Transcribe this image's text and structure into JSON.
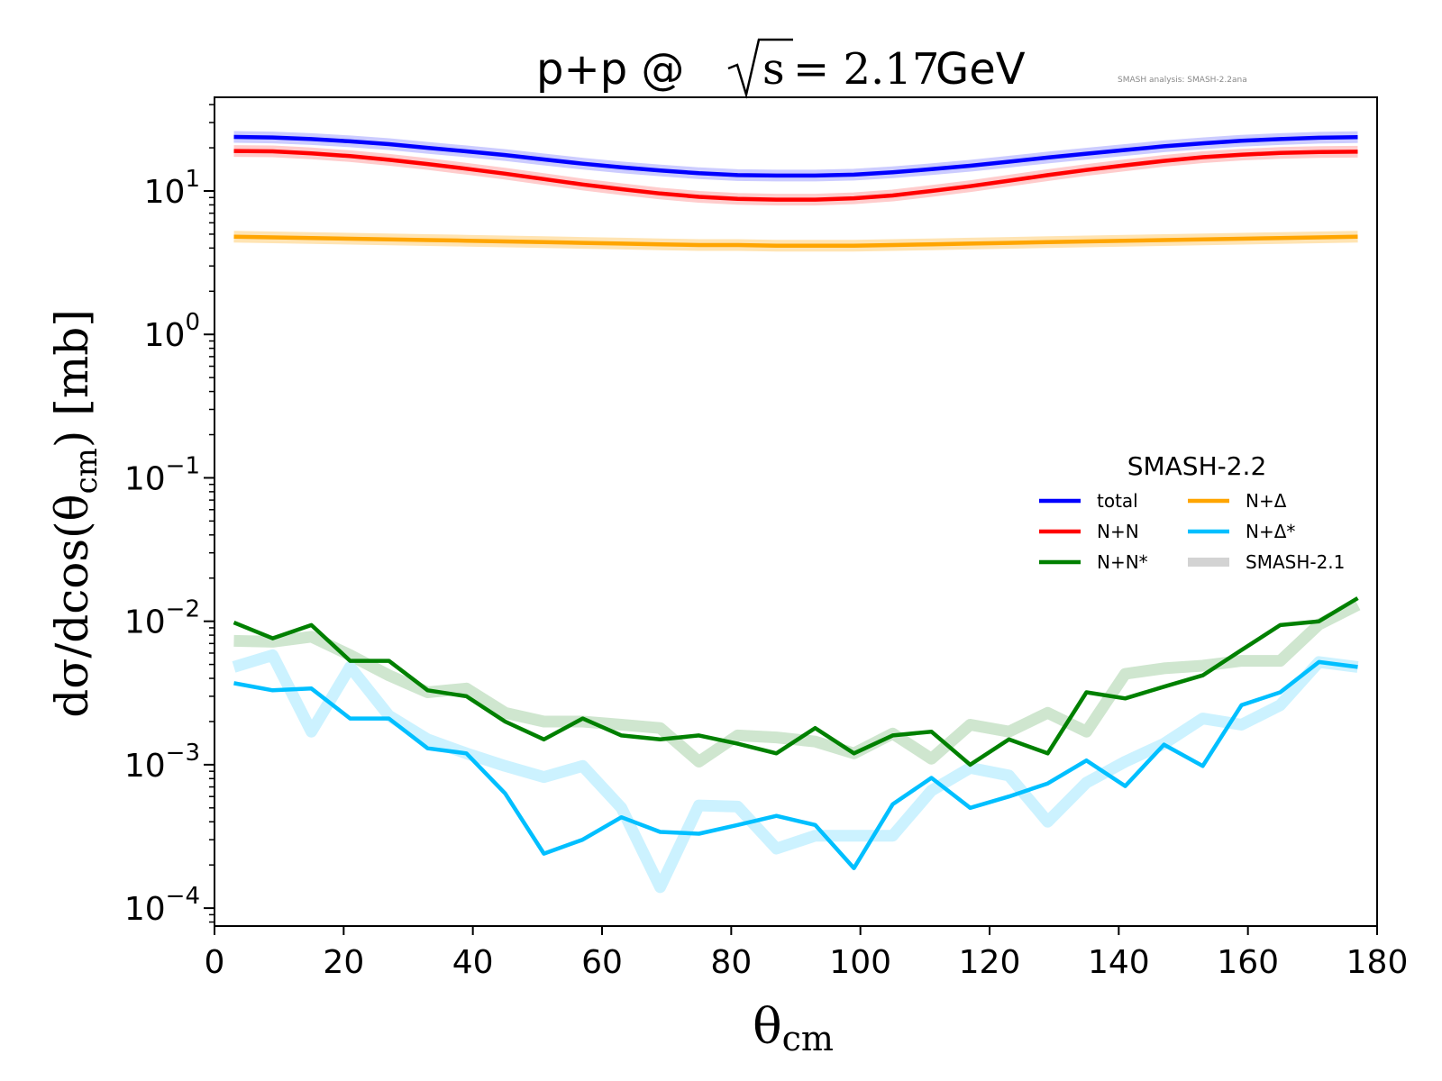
{
  "chart_data": {
    "type": "line",
    "title": {
      "prefix": "p+p @ ",
      "sqrt_arg": "s",
      "equals_value": " = 2.17",
      "suffix": " GeV"
    },
    "annotation": "SMASH analysis: SMASH-2.2ana",
    "xlabel": {
      "base": "θ",
      "sub": "cm"
    },
    "ylabel": {
      "prefix": "dσ/dcos(θ",
      "sub": "cm",
      "suffix": ") [mb]"
    },
    "xlim": [
      0,
      180
    ],
    "ylim": [
      7.5e-05,
      45
    ],
    "yscale": "log",
    "xticks": [
      "0",
      "20",
      "40",
      "60",
      "80",
      "100",
      "120",
      "140",
      "160",
      "180"
    ],
    "yticks": [
      {
        "base": "10",
        "exp": "1"
      },
      {
        "base": "10",
        "exp": "0"
      },
      {
        "base": "10",
        "exp": "−1"
      },
      {
        "base": "10",
        "exp": "−2"
      },
      {
        "base": "10",
        "exp": "−3"
      },
      {
        "base": "10",
        "exp": "−4"
      }
    ],
    "legend": {
      "title": "SMASH-2.2",
      "placement": "center-right",
      "entries": [
        {
          "label": "total",
          "color": "#0000ff"
        },
        {
          "label": "N+Δ",
          "color": "#ffa500"
        },
        {
          "label": "N+N",
          "color": "#ff0000"
        },
        {
          "label": "N+Δ*",
          "color": "#00bfff"
        },
        {
          "label": "N+N*",
          "color": "#008000"
        },
        {
          "label": "SMASH-2.1",
          "color": "#d3d3d3"
        }
      ]
    },
    "x": [
      3,
      9,
      15,
      21,
      27,
      33,
      39,
      45,
      51,
      57,
      63,
      69,
      75,
      81,
      87,
      93,
      99,
      105,
      111,
      117,
      123,
      129,
      135,
      141,
      147,
      153,
      159,
      165,
      171,
      177
    ],
    "series": [
      {
        "name": "total",
        "color": "#0000ff",
        "values": [
          23.8,
          23.6,
          23.0,
          22.2,
          21.2,
          20.0,
          18.9,
          17.8,
          16.6,
          15.5,
          14.6,
          13.9,
          13.3,
          12.9,
          12.8,
          12.8,
          13.0,
          13.5,
          14.2,
          15.0,
          16.0,
          17.1,
          18.2,
          19.3,
          20.5,
          21.5,
          22.4,
          23.0,
          23.5,
          23.7
        ]
      },
      {
        "name": "N+N",
        "color": "#ff0000",
        "values": [
          19.0,
          18.9,
          18.3,
          17.5,
          16.5,
          15.4,
          14.3,
          13.2,
          12.1,
          11.1,
          10.3,
          9.6,
          9.1,
          8.8,
          8.7,
          8.7,
          8.9,
          9.3,
          10.0,
          10.8,
          11.8,
          12.9,
          14.0,
          15.1,
          16.2,
          17.2,
          17.9,
          18.4,
          18.7,
          18.8
        ]
      },
      {
        "name": "N+Δ",
        "color": "#ffa500",
        "values": [
          4.8,
          4.75,
          4.7,
          4.65,
          4.6,
          4.55,
          4.5,
          4.45,
          4.4,
          4.35,
          4.3,
          4.25,
          4.2,
          4.2,
          4.15,
          4.15,
          4.15,
          4.2,
          4.25,
          4.3,
          4.35,
          4.4,
          4.45,
          4.5,
          4.55,
          4.6,
          4.65,
          4.7,
          4.75,
          4.8
        ]
      },
      {
        "name": "N+N*",
        "color": "#008000",
        "values": [
          0.0098,
          0.0076,
          0.0094,
          0.0053,
          0.0053,
          0.0033,
          0.003,
          0.002,
          0.0015,
          0.0021,
          0.0016,
          0.0015,
          0.0016,
          0.0014,
          0.0012,
          0.0018,
          0.0012,
          0.0016,
          0.0017,
          0.001,
          0.0015,
          0.0012,
          0.0032,
          0.0029,
          0.0035,
          0.0042,
          0.0063,
          0.0094,
          0.01,
          0.0145
        ]
      },
      {
        "name": "N+Δ*",
        "color": "#00bfff",
        "values": [
          0.0037,
          0.0033,
          0.0034,
          0.0021,
          0.0021,
          0.0013,
          0.0012,
          0.00063,
          0.00024,
          0.0003,
          0.00043,
          0.00034,
          0.00033,
          0.00038,
          0.00044,
          0.00038,
          0.00019,
          0.00053,
          0.00081,
          0.0005,
          0.0006,
          0.00074,
          0.00107,
          0.00071,
          0.00138,
          0.00098,
          0.0026,
          0.0032,
          0.0052,
          0.0048
        ]
      }
    ],
    "reference_series": {
      "name": "SMASH-2.1",
      "lines": [
        {
          "color": "#ccccff",
          "values": [
            23.8,
            23.6,
            23.0,
            22.2,
            21.2,
            20.0,
            18.9,
            17.8,
            16.6,
            15.5,
            14.6,
            13.9,
            13.3,
            12.9,
            12.8,
            12.8,
            13.0,
            13.5,
            14.2,
            15.0,
            16.0,
            17.1,
            18.2,
            19.3,
            20.5,
            21.5,
            22.4,
            23.0,
            23.5,
            23.7
          ]
        },
        {
          "color": "#ffcccc",
          "values": [
            19.0,
            18.9,
            18.3,
            17.5,
            16.5,
            15.4,
            14.3,
            13.2,
            12.1,
            11.1,
            10.3,
            9.6,
            9.1,
            8.8,
            8.7,
            8.7,
            8.9,
            9.3,
            10.0,
            10.8,
            11.8,
            12.9,
            14.0,
            15.1,
            16.2,
            17.2,
            17.9,
            18.4,
            18.7,
            18.8
          ]
        },
        {
          "color": "#ffe4b3",
          "values": [
            4.8,
            4.75,
            4.7,
            4.65,
            4.6,
            4.55,
            4.5,
            4.45,
            4.4,
            4.35,
            4.3,
            4.25,
            4.2,
            4.2,
            4.15,
            4.15,
            4.15,
            4.2,
            4.25,
            4.3,
            4.35,
            4.4,
            4.45,
            4.5,
            4.55,
            4.6,
            4.65,
            4.7,
            4.75,
            4.8
          ]
        },
        {
          "color": "#cfe6cf",
          "values": [
            0.0073,
            0.0072,
            0.0078,
            0.0058,
            0.0042,
            0.0032,
            0.0034,
            0.0023,
            0.002,
            0.002,
            0.0019,
            0.0018,
            0.00105,
            0.0016,
            0.00155,
            0.00145,
            0.0012,
            0.00165,
            0.0011,
            0.0019,
            0.0017,
            0.0023,
            0.0017,
            0.0043,
            0.0047,
            0.0049,
            0.0053,
            0.0053,
            0.0095,
            0.013
          ]
        },
        {
          "color": "#ccf2ff",
          "values": [
            0.0048,
            0.0058,
            0.0017,
            0.0048,
            0.0022,
            0.0015,
            0.0012,
            0.00098,
            0.00082,
            0.00098,
            0.0005,
            0.00014,
            0.00052,
            0.00051,
            0.00026,
            0.00032,
            0.00032,
            0.00032,
            0.00066,
            0.00095,
            0.00084,
            0.0004,
            0.00075,
            0.00105,
            0.0014,
            0.0021,
            0.0019,
            0.0026,
            0.0052,
            0.0048
          ]
        }
      ]
    }
  }
}
